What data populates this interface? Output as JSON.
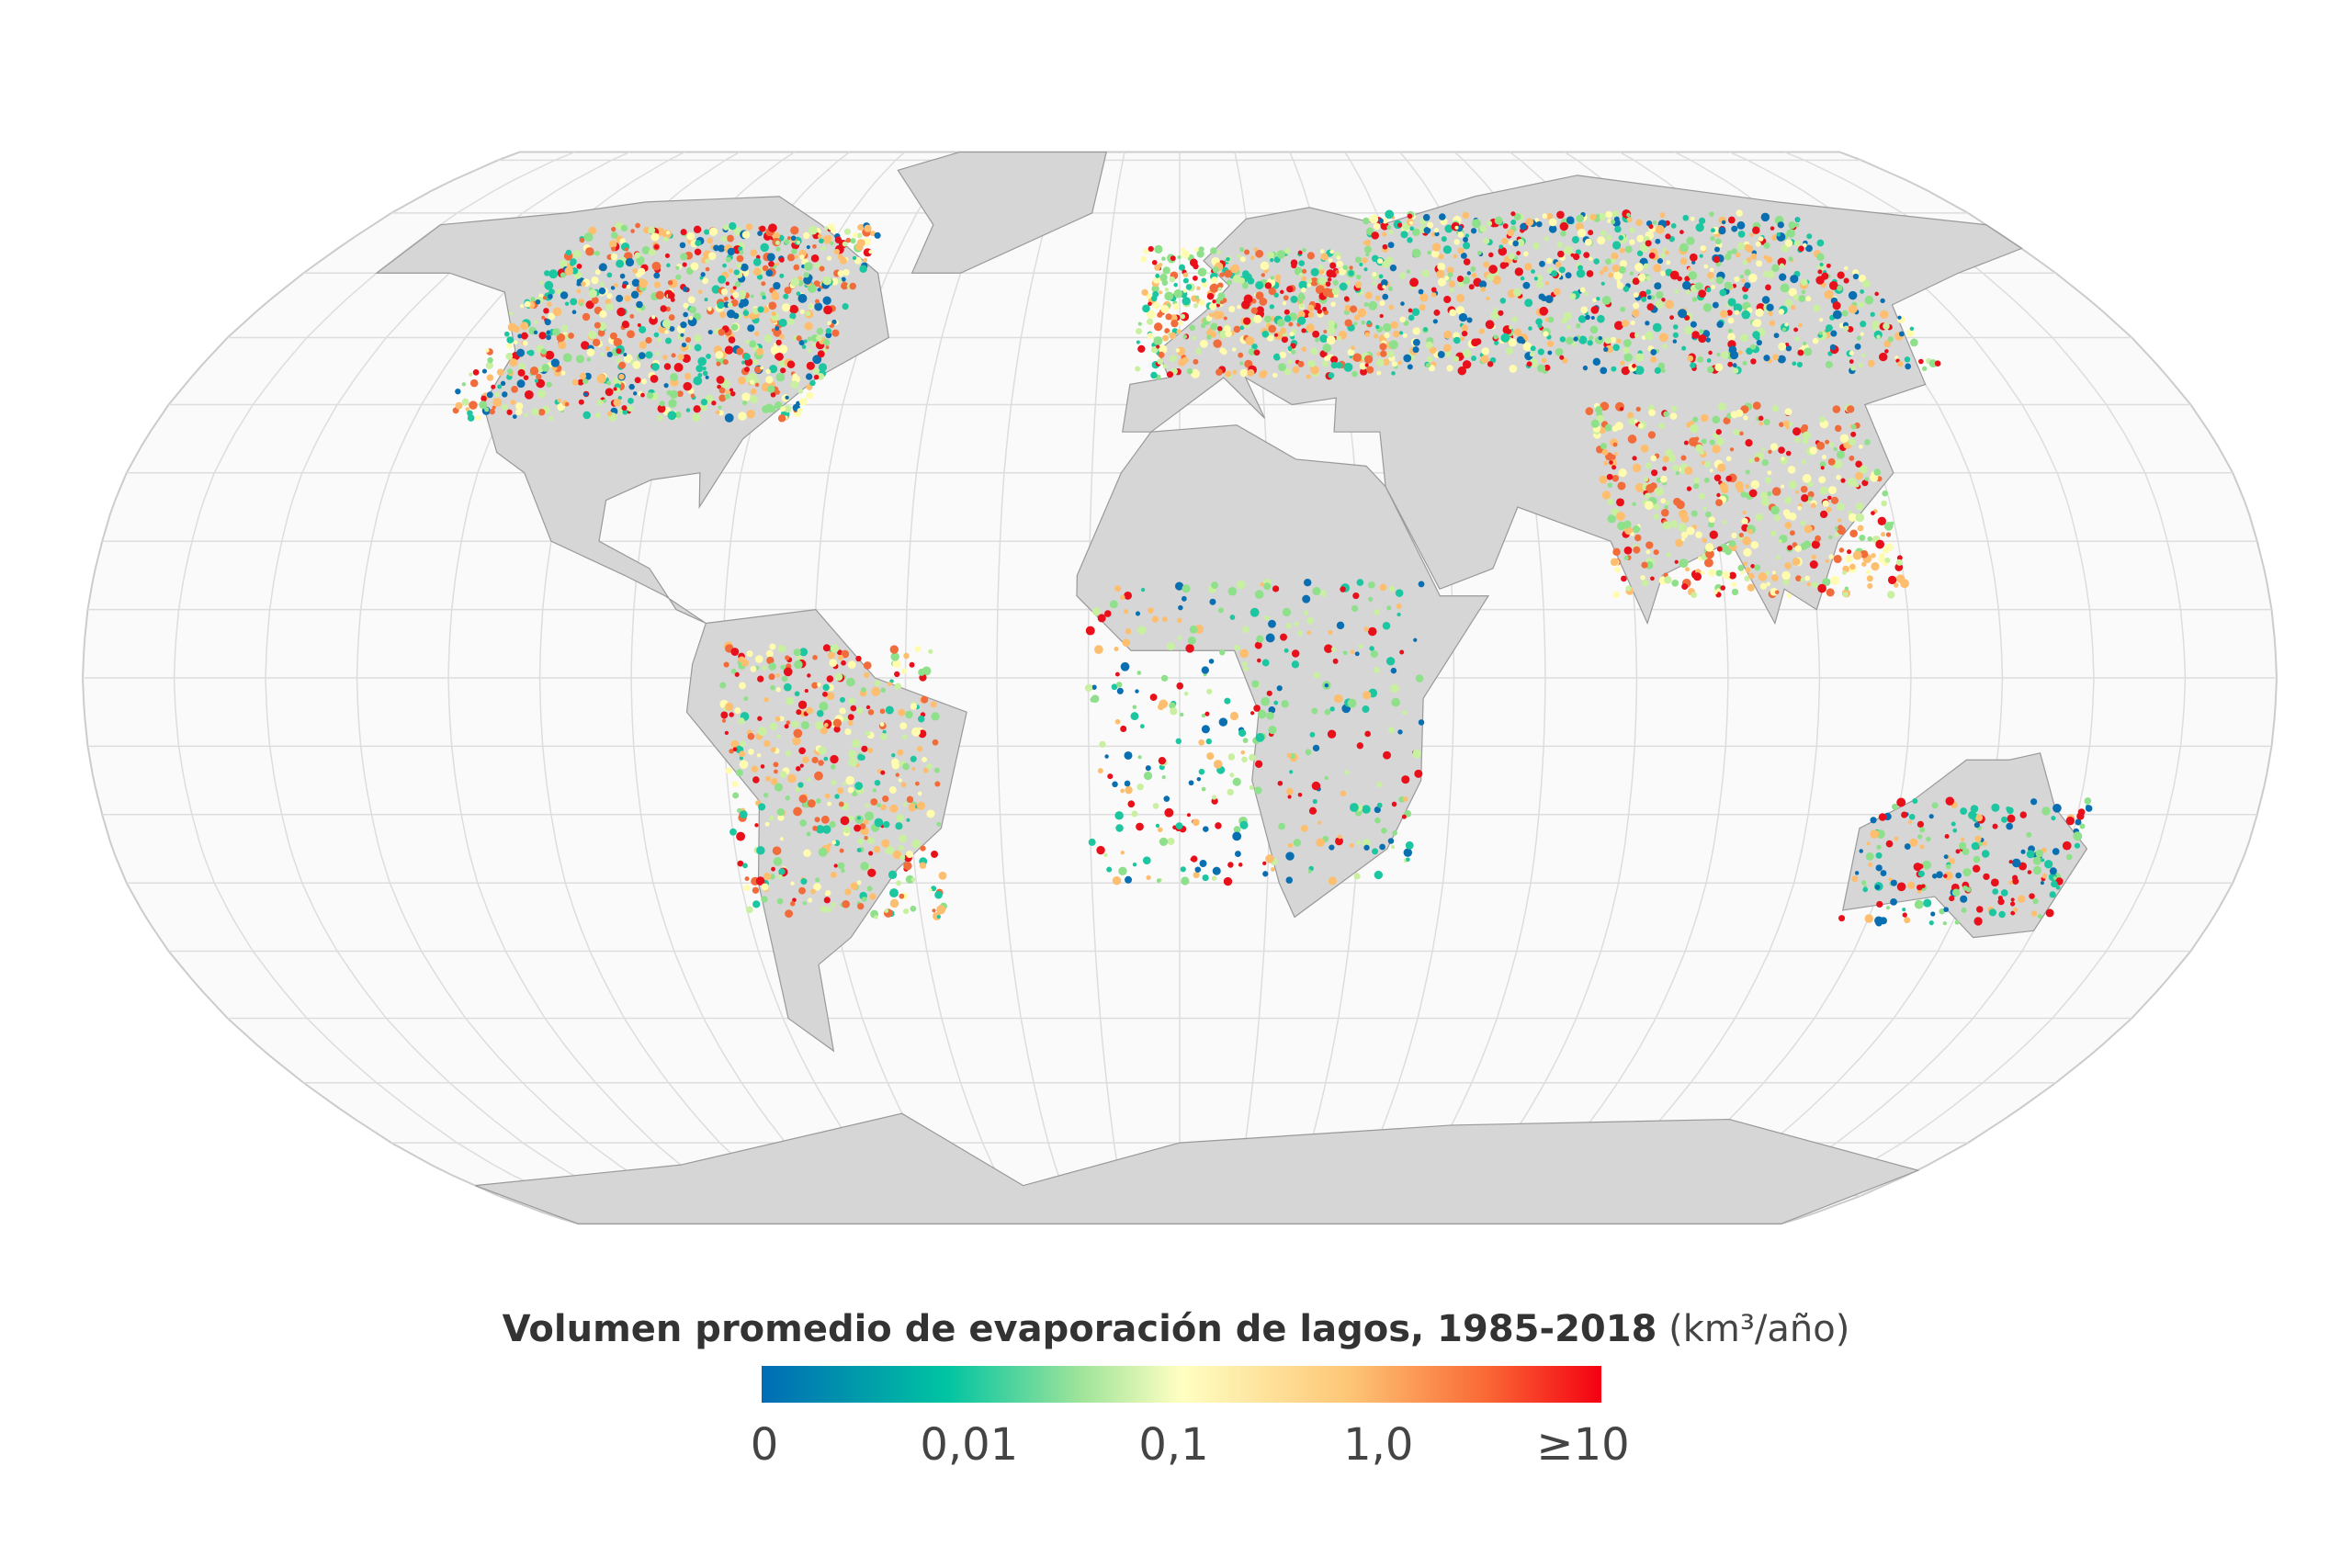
{
  "legend": {
    "title": "Volumen promedio de evaporación de lagos, 1985-2018",
    "unit": "(km³/año)",
    "ticks": [
      "0",
      "0,01",
      "0,1",
      "1,0",
      "≥10"
    ]
  }
}
